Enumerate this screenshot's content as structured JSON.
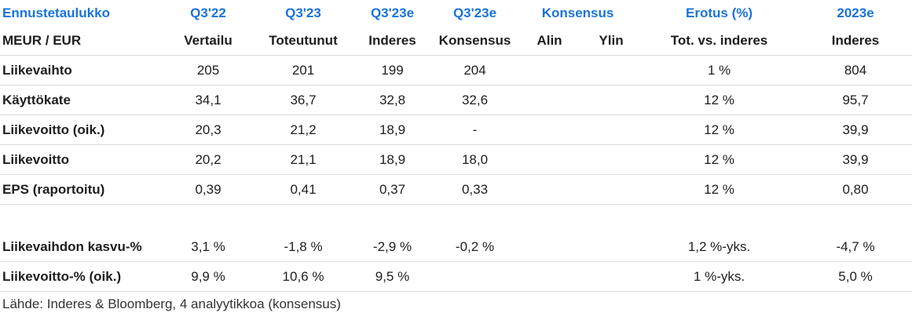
{
  "header1": {
    "c0": "Ennustetaulukko",
    "c1": "Q3'22",
    "c2": "Q3'23",
    "c3": "Q3'23e",
    "c4": "Q3'23e",
    "c5": "Konsensus",
    "c6": "Erotus (%)",
    "c7": "2023e"
  },
  "header2": {
    "c0": "MEUR / EUR",
    "c1": "Vertailu",
    "c2": "Toteutunut",
    "c3": "Inderes",
    "c4": "Konsensus",
    "c5": "Alin",
    "c6": "Ylin",
    "c7": "Tot. vs. inderes",
    "c8": "Inderes"
  },
  "rows": [
    {
      "label": "Liikevaihto",
      "q322": "205",
      "q323": "201",
      "inderes": "199",
      "konsensus": "204",
      "alin": "",
      "ylin": "",
      "erotus": "1 %",
      "y2023": "804"
    },
    {
      "label": "Käyttökate",
      "q322": "34,1",
      "q323": "36,7",
      "inderes": "32,8",
      "konsensus": "32,6",
      "alin": "",
      "ylin": "",
      "erotus": "12 %",
      "y2023": "95,7"
    },
    {
      "label": "Liikevoitto (oik.)",
      "q322": "20,3",
      "q323": "21,2",
      "inderes": "18,9",
      "konsensus": "-",
      "alin": "",
      "ylin": "",
      "erotus": "12 %",
      "y2023": "39,9"
    },
    {
      "label": "Liikevoitto",
      "q322": "20,2",
      "q323": "21,1",
      "inderes": "18,9",
      "konsensus": "18,0",
      "alin": "",
      "ylin": "",
      "erotus": "12 %",
      "y2023": "39,9"
    },
    {
      "label": "EPS (raportoitu)",
      "q322": "0,39",
      "q323": "0,41",
      "inderes": "0,37",
      "konsensus": "0,33",
      "alin": "",
      "ylin": "",
      "erotus": "12 %",
      "y2023": "0,80"
    }
  ],
  "rows2": [
    {
      "label": "Liikevaihdon kasvu-%",
      "q322": "3,1 %",
      "q323": "-1,8 %",
      "inderes": "-2,9 %",
      "konsensus": "-0,2 %",
      "alin": "",
      "ylin": "",
      "erotus": "1,2 %-yks.",
      "y2023": "-4,7 %"
    },
    {
      "label": "Liikevoitto-% (oik.)",
      "q322": "9,9 %",
      "q323": "10,6 %",
      "inderes": "9,5 %",
      "konsensus": "",
      "alin": "",
      "ylin": "",
      "erotus": "1 %-yks.",
      "y2023": "5,0 %"
    }
  ],
  "source": "Lähde: Inderes & Bloomberg, 4 analyytikkoa  (konsensus)"
}
